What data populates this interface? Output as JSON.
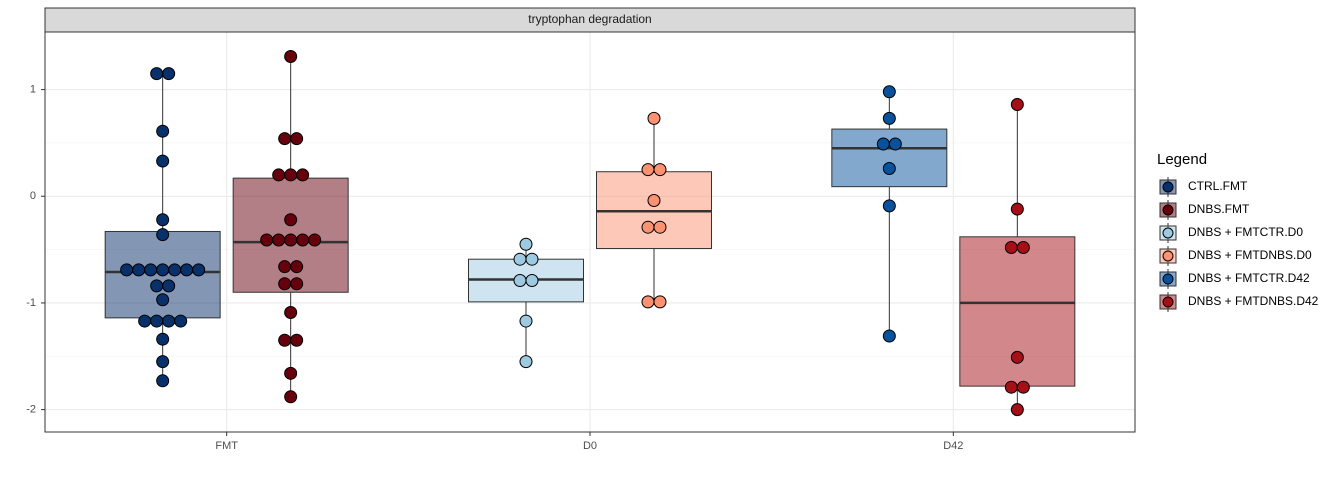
{
  "chart_data": {
    "type": "box",
    "title": "tryptophan degradation",
    "categories": [
      "FMT",
      "D0",
      "D42"
    ],
    "ylim": [
      -2.21,
      1.54
    ],
    "yticks": [
      -2,
      -1,
      0,
      1
    ],
    "grid": true,
    "legend_title": "Legend",
    "legend_position": "right",
    "series": [
      {
        "name": "CTRL.FMT",
        "color": "#08306b",
        "whisker_low": -1.73,
        "q1": -1.14,
        "median": -0.71,
        "q3": -0.33,
        "whisker_high": 1.15,
        "values": [
          1.15,
          1.15,
          0.61,
          0.33,
          -0.22,
          -0.36,
          -0.69,
          -0.69,
          -0.69,
          -0.69,
          -0.69,
          -0.69,
          -0.69,
          -0.84,
          -0.84,
          -0.97,
          -1.17,
          -1.17,
          -1.17,
          -1.17,
          -1.34,
          -1.55,
          -1.73
        ]
      },
      {
        "name": "DNBS.FMT",
        "color": "#67000d",
        "whisker_low": -1.88,
        "q1": -0.9,
        "median": -0.43,
        "q3": 0.17,
        "whisker_high": 1.31,
        "values": [
          1.31,
          0.54,
          0.54,
          0.2,
          0.2,
          0.2,
          -0.22,
          -0.41,
          -0.41,
          -0.41,
          -0.41,
          -0.41,
          -0.66,
          -0.66,
          -0.82,
          -0.82,
          -1.09,
          -1.35,
          -1.35,
          -1.66,
          -1.88
        ]
      },
      {
        "name": "DNBS + FMTCTR.D0",
        "color": "#9ecae1",
        "whisker_low": -1.55,
        "q1": -0.99,
        "median": -0.78,
        "q3": -0.59,
        "whisker_high": -0.45,
        "values": [
          -0.45,
          -0.59,
          -0.59,
          -0.79,
          -0.79,
          -1.17,
          -1.55
        ]
      },
      {
        "name": "DNBS + FMTDNBS.D0",
        "color": "#fc9272",
        "whisker_low": -0.99,
        "q1": -0.49,
        "median": -0.14,
        "q3": 0.23,
        "whisker_high": 0.73,
        "values": [
          0.73,
          0.25,
          0.25,
          -0.04,
          -0.29,
          -0.29,
          -0.99,
          -0.99
        ]
      },
      {
        "name": "DNBS + FMTCTR.D42",
        "color": "#08519c",
        "whisker_low": -1.31,
        "q1": 0.09,
        "median": 0.45,
        "q3": 0.63,
        "whisker_high": 0.98,
        "values": [
          0.98,
          0.73,
          0.49,
          0.49,
          0.26,
          -0.09,
          -1.31
        ]
      },
      {
        "name": "DNBS + FMTDNBS.D42",
        "color": "#a50f15",
        "whisker_low": -2.0,
        "q1": -1.78,
        "median": -1.0,
        "q3": -0.38,
        "whisker_high": 0.86,
        "values": [
          0.86,
          -0.12,
          -0.48,
          -0.48,
          -1.51,
          -1.79,
          -1.79,
          -2.0
        ]
      }
    ]
  }
}
